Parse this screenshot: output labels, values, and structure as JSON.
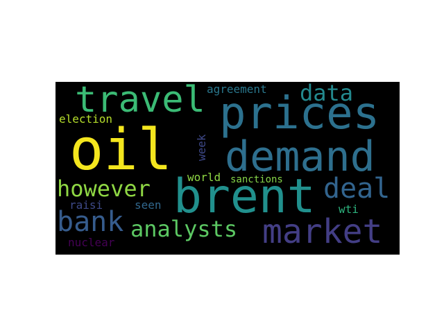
{
  "word_cloud": {
    "background": "#000000",
    "words": [
      {
        "text": "oil",
        "color": "#f4e61e"
      },
      {
        "text": "prices",
        "color": "#2c718e"
      },
      {
        "text": "brent",
        "color": "#21908d"
      },
      {
        "text": "demand",
        "color": "#2e6f8e"
      },
      {
        "text": "travel",
        "color": "#3bbb75"
      },
      {
        "text": "market",
        "color": "#433e85"
      },
      {
        "text": "however",
        "color": "#8fd744"
      },
      {
        "text": "analysts",
        "color": "#5cc863"
      },
      {
        "text": "deal",
        "color": "#32648e"
      },
      {
        "text": "bank",
        "color": "#365c8d"
      },
      {
        "text": "data",
        "color": "#23898e"
      },
      {
        "text": "agreement",
        "color": "#2a788e"
      },
      {
        "text": "election",
        "color": "#b5de2b"
      },
      {
        "text": "week",
        "color": "#3e4989"
      },
      {
        "text": "world",
        "color": "#8fd744"
      },
      {
        "text": "sanctions",
        "color": "#86d549"
      },
      {
        "text": "raisi",
        "color": "#3e4a89"
      },
      {
        "text": "seen",
        "color": "#31688e"
      },
      {
        "text": "wti",
        "color": "#2db27d"
      },
      {
        "text": "nuclear",
        "color": "#440154"
      }
    ]
  }
}
